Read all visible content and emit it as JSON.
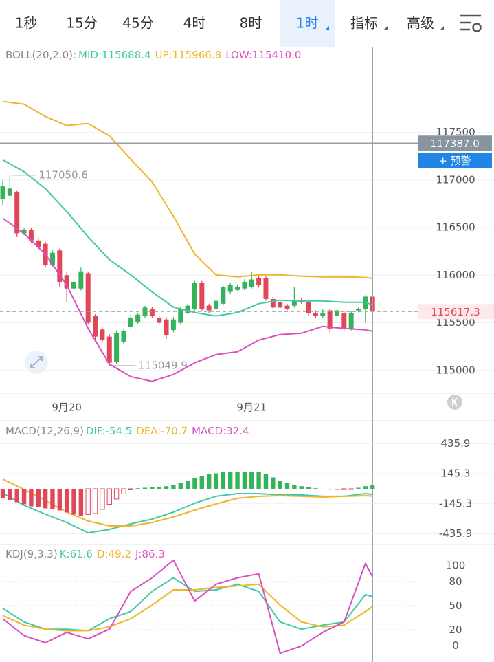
{
  "tabs": [
    "1秒",
    "15分",
    "45分",
    "4时",
    "8时",
    "1时",
    "指标",
    "高级"
  ],
  "active_tab": 5,
  "chart_data": [
    {
      "type": "candlestick",
      "title": "BOLL(20,2.0):",
      "candles": [
        [
          116800,
          117000,
          116740,
          116940
        ],
        [
          116835,
          117050.6,
          116800,
          116910
        ],
        [
          116870,
          116885,
          116400,
          116440
        ],
        [
          116440,
          116500,
          116420,
          116480
        ],
        [
          116475,
          116500,
          116340,
          116365
        ],
        [
          116365,
          116400,
          116270,
          116290
        ],
        [
          116330,
          116350,
          116080,
          116110
        ],
        [
          116110,
          116260,
          116090,
          116235
        ],
        [
          116260,
          116280,
          115880,
          115930
        ],
        [
          116000,
          116030,
          115720,
          115860
        ],
        [
          115860,
          115950,
          115840,
          115930
        ],
        [
          115860,
          116080,
          115840,
          116040
        ],
        [
          116020,
          116040,
          115480,
          115500
        ],
        [
          115570,
          115590,
          115300,
          115355
        ],
        [
          115430,
          115450,
          115290,
          115320
        ],
        [
          115355,
          115380,
          115049.9,
          115080
        ],
        [
          115090,
          115420,
          115070,
          115390
        ],
        [
          115300,
          115430,
          115280,
          115410
        ],
        [
          115455,
          115580,
          115430,
          115555
        ],
        [
          115510,
          115600,
          115490,
          115585
        ],
        [
          115570,
          115680,
          115550,
          115660
        ],
        [
          115645,
          115670,
          115550,
          115570
        ],
        [
          115555,
          115580,
          115480,
          115500
        ],
        [
          115535,
          115560,
          115330,
          115370
        ],
        [
          115425,
          115560,
          115400,
          115535
        ],
        [
          115500,
          115670,
          115480,
          115645
        ],
        [
          115605,
          115700,
          115590,
          115680
        ],
        [
          115645,
          115940,
          115630,
          115920
        ],
        [
          115920,
          115940,
          115620,
          115645
        ],
        [
          115680,
          115700,
          115600,
          115630
        ],
        [
          115645,
          115760,
          115620,
          115730
        ],
        [
          115700,
          115890,
          115680,
          115875
        ],
        [
          115825,
          115920,
          115800,
          115895
        ],
        [
          115845,
          115900,
          115830,
          115875
        ],
        [
          115860,
          115960,
          115840,
          115930
        ],
        [
          115875,
          116040,
          115860,
          115955
        ],
        [
          115970,
          115990,
          115870,
          115895
        ],
        [
          115970,
          115990,
          115730,
          115750
        ],
        [
          115750,
          115770,
          115640,
          115660
        ],
        [
          115715,
          115730,
          115640,
          115660
        ],
        [
          115680,
          115700,
          115630,
          115645
        ],
        [
          115680,
          115875,
          115660,
          115730
        ],
        [
          115730,
          115760,
          115700,
          115715
        ],
        [
          115715,
          115740,
          115580,
          115605
        ],
        [
          115605,
          115630,
          115550,
          115570
        ],
        [
          115570,
          115640,
          115550,
          115605
        ],
        [
          115630,
          115650,
          115400,
          115440
        ],
        [
          115570,
          115650,
          115550,
          115630
        ],
        [
          115605,
          115620,
          115420,
          115440
        ],
        [
          115440,
          115620,
          115420,
          115605
        ],
        [
          115630,
          115660,
          115610,
          115645
        ],
        [
          115645,
          115790,
          115500,
          115775
        ],
        [
          115775,
          115790,
          115600,
          115617.3
        ]
      ],
      "up_color": "#35b35a",
      "down_color": "#e0485a",
      "series": [
        {
          "name": "MID:115688.4",
          "color": "#3ec9a7",
          "x": [
            0,
            3,
            6,
            9,
            12,
            15,
            18,
            21,
            24,
            27,
            30,
            33,
            36,
            39,
            42,
            45,
            48,
            51,
            52
          ],
          "values": [
            117211,
            117088,
            116908,
            116669,
            116402,
            116163,
            116004,
            115824,
            115665,
            115607,
            115571,
            115607,
            115701,
            115737,
            115730,
            115730,
            115715,
            115715,
            115688.4
          ]
        },
        {
          "name": "UP:115966.8",
          "color": "#f0b429",
          "x": [
            0,
            3,
            6,
            9,
            12,
            15,
            18,
            21,
            24,
            27,
            30,
            33,
            36,
            39,
            42,
            45,
            48,
            51,
            52
          ],
          "values": [
            117825,
            117796,
            117666,
            117572,
            117594,
            117464,
            117218,
            116980,
            116619,
            116221,
            116004,
            115983,
            116004,
            116004,
            115990,
            115983,
            115983,
            115976,
            115966.8
          ]
        },
        {
          "name": "LOW:115410.0",
          "color": "#d94fc0",
          "x": [
            0,
            3,
            6,
            9,
            12,
            15,
            18,
            21,
            24,
            27,
            30,
            33,
            36,
            39,
            42,
            45,
            48,
            51,
            52
          ],
          "values": [
            116597,
            116438,
            116221,
            115896,
            115441,
            115065,
            114935,
            114885,
            114957,
            115080,
            115166,
            115195,
            115318,
            115376,
            115390,
            115463,
            115441,
            115426,
            115410
          ]
        }
      ],
      "annotations": [
        {
          "x": 1,
          "value": 117050.6
        },
        {
          "x": 15,
          "value": 115049.9
        }
      ],
      "crosshair": {
        "x": 52,
        "value": 117387,
        "label": "117387.0"
      },
      "alert_button": "+ 预警",
      "last_price": 115617.3,
      "ylim": [
        114760,
        118400
      ],
      "yticks": [
        115000,
        115500,
        116000,
        116500,
        117000,
        117500
      ],
      "grid": true,
      "xticks": [
        {
          "value": 9,
          "label": "9月20"
        },
        {
          "value": 35,
          "label": "9月21"
        }
      ]
    },
    {
      "type": "macd",
      "title": "MACD(12,26,9)",
      "series": [
        {
          "name": "DIF:-54.5",
          "color": "#3ec9a7",
          "x": [
            0,
            3,
            6,
            9,
            12,
            15,
            18,
            21,
            24,
            27,
            30,
            33,
            36,
            39,
            42,
            45,
            48,
            51,
            52
          ],
          "values": [
            -40,
            -160,
            -247,
            -327,
            -427,
            -394,
            -340,
            -294,
            -227,
            -140,
            -73,
            -47,
            -47,
            -60,
            -60,
            -73,
            -73,
            -47,
            -54.5
          ]
        },
        {
          "name": "DEA:-70.7",
          "color": "#f0b429",
          "x": [
            0,
            3,
            6,
            9,
            12,
            15,
            18,
            21,
            24,
            27,
            30,
            33,
            36,
            39,
            42,
            45,
            48,
            51,
            52
          ],
          "values": [
            93,
            -7,
            -113,
            -227,
            -313,
            -360,
            -360,
            -327,
            -273,
            -207,
            -147,
            -93,
            -73,
            -67,
            -73,
            -80,
            -73,
            -67,
            -70.7
          ]
        },
        {
          "name": "MACD:32.4",
          "type": "bar",
          "color": "#d94fc0",
          "values": [
            -90,
            -110,
            -130,
            -150,
            -170,
            -180,
            -190,
            -200,
            -210,
            -230,
            -250,
            -260,
            -250,
            -240,
            -200,
            -150,
            -100,
            -50,
            -10,
            5,
            10,
            15,
            20,
            25,
            40,
            60,
            80,
            100,
            120,
            140,
            150,
            160,
            165,
            167,
            167,
            165,
            160,
            140,
            110,
            80,
            60,
            40,
            25,
            15,
            5,
            -5,
            -8,
            -10,
            -8,
            -5,
            10,
            25,
            32.4
          ]
        }
      ],
      "up_color": "#35b35a",
      "down_color": "#e0485a",
      "ylim": [
        -527,
        640
      ],
      "yticks": [
        435.9,
        145.3,
        -145.3,
        -435.9
      ],
      "grid": true
    },
    {
      "type": "line",
      "title": "KDJ(9,3,3)",
      "series": [
        {
          "name": "K:61.6",
          "color": "#3ec9a7",
          "x": [
            0,
            3,
            6,
            9,
            12,
            15,
            18,
            21,
            24,
            27,
            30,
            33,
            36,
            39,
            42,
            45,
            48,
            51,
            52
          ],
          "values": [
            47,
            30,
            21,
            21,
            19,
            34,
            43,
            68,
            85,
            68,
            70,
            77,
            68,
            30,
            21,
            26,
            30,
            64,
            61.6
          ]
        },
        {
          "name": "D:49.2",
          "color": "#f0b429",
          "x": [
            0,
            3,
            6,
            9,
            12,
            15,
            18,
            21,
            24,
            27,
            30,
            33,
            36,
            39,
            42,
            45,
            48,
            51,
            52
          ],
          "values": [
            38,
            26,
            21,
            19,
            19,
            24,
            34,
            51,
            70,
            70,
            73,
            75,
            77,
            51,
            30,
            24,
            26,
            43,
            49.2
          ]
        },
        {
          "name": "J:86.3",
          "color": "#d94fc0",
          "x": [
            0,
            3,
            6,
            9,
            12,
            15,
            18,
            21,
            24,
            27,
            30,
            33,
            36,
            39,
            42,
            45,
            48,
            51,
            52
          ],
          "values": [
            34,
            13,
            4,
            17,
            9,
            21,
            68,
            85,
            107,
            56,
            77,
            85,
            90,
            -9,
            0,
            17,
            30,
            103,
            86.3
          ]
        }
      ],
      "ylim": [
        -20,
        124
      ],
      "yticks": [
        100,
        80,
        50,
        20,
        0
      ],
      "grid_levels": [
        80,
        50,
        20
      ]
    }
  ]
}
